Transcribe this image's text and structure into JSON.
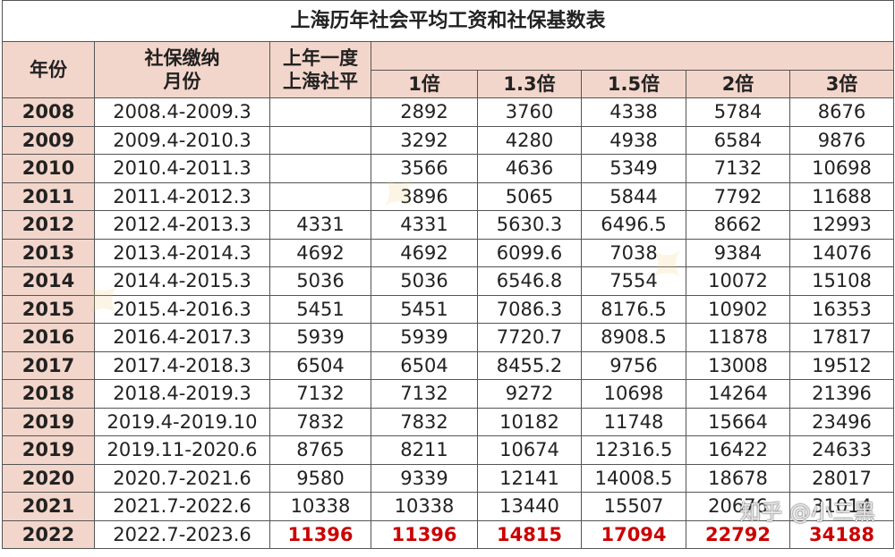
{
  "title": "上海历年社会平均工资和社保基数表",
  "headers": {
    "year": "年份",
    "month_line1": "社保缴纳",
    "month_line2": "月份",
    "avg_line1": "上年一度",
    "avg_line2": "上海社平",
    "multipliers": [
      "1倍",
      "1.3倍",
      "1.5倍",
      "2倍",
      "3倍"
    ]
  },
  "rows": [
    {
      "year": "2008",
      "period": "2008.4-2009.3",
      "avg": "",
      "v1": "2892",
      "v13": "3760",
      "v15": "4338",
      "v2": "5784",
      "v3": "8676"
    },
    {
      "year": "2009",
      "period": "2009.4-2010.3",
      "avg": "",
      "v1": "3292",
      "v13": "4280",
      "v15": "4938",
      "v2": "6584",
      "v3": "9876"
    },
    {
      "year": "2010",
      "period": "2010.4-2011.3",
      "avg": "",
      "v1": "3566",
      "v13": "4636",
      "v15": "5349",
      "v2": "7132",
      "v3": "10698"
    },
    {
      "year": "2011",
      "period": "2011.4-2012.3",
      "avg": "",
      "v1": "3896",
      "v13": "5065",
      "v15": "5844",
      "v2": "7792",
      "v3": "11688"
    },
    {
      "year": "2012",
      "period": "2012.4-2013.3",
      "avg": "4331",
      "v1": "4331",
      "v13": "5630.3",
      "v15": "6496.5",
      "v2": "8662",
      "v3": "12993"
    },
    {
      "year": "2013",
      "period": "2013.4-2014.3",
      "avg": "4692",
      "v1": "4692",
      "v13": "6099.6",
      "v15": "7038",
      "v2": "9384",
      "v3": "14076"
    },
    {
      "year": "2014",
      "period": "2014.4-2015.3",
      "avg": "5036",
      "v1": "5036",
      "v13": "6546.8",
      "v15": "7554",
      "v2": "10072",
      "v3": "15108"
    },
    {
      "year": "2015",
      "period": "2015.4-2016.3",
      "avg": "5451",
      "v1": "5451",
      "v13": "7086.3",
      "v15": "8176.5",
      "v2": "10902",
      "v3": "16353"
    },
    {
      "year": "2016",
      "period": "2016.4-2017.3",
      "avg": "5939",
      "v1": "5939",
      "v13": "7720.7",
      "v15": "8908.5",
      "v2": "11878",
      "v3": "17817"
    },
    {
      "year": "2017",
      "period": "2017.4-2018.3",
      "avg": "6504",
      "v1": "6504",
      "v13": "8455.2",
      "v15": "9756",
      "v2": "13008",
      "v3": "19512"
    },
    {
      "year": "2018",
      "period": "2018.4-2019.3",
      "avg": "7132",
      "v1": "7132",
      "v13": "9272",
      "v15": "10698",
      "v2": "14264",
      "v3": "21396"
    },
    {
      "year": "2019",
      "period": "2019.4-2019.10",
      "avg": "7832",
      "v1": "7832",
      "v13": "10182",
      "v15": "11748",
      "v2": "15664",
      "v3": "23496"
    },
    {
      "year": "2019",
      "period": "2019.11-2020.6",
      "avg": "8765",
      "v1": "8211",
      "v13": "10674",
      "v15": "12316.5",
      "v2": "16422",
      "v3": "24633"
    },
    {
      "year": "2020",
      "period": "2020.7-2021.6",
      "avg": "9580",
      "v1": "9339",
      "v13": "12141",
      "v15": "14008.5",
      "v2": "18678",
      "v3": "28017"
    },
    {
      "year": "2021",
      "period": "2021.7-2022.6",
      "avg": "10338",
      "v1": "10338",
      "v13": "13440",
      "v15": "15507",
      "v2": "20676",
      "v3": "31014"
    },
    {
      "year": "2022",
      "period": "2022.7-2023.6",
      "avg": "11396",
      "v1": "11396",
      "v13": "14815",
      "v15": "17094",
      "v2": "22792",
      "v3": "34188",
      "highlight": true
    }
  ],
  "watermark": "知乎 @小三黑",
  "accent_color": "#cc0000",
  "header_bg": "#f3d6cb"
}
